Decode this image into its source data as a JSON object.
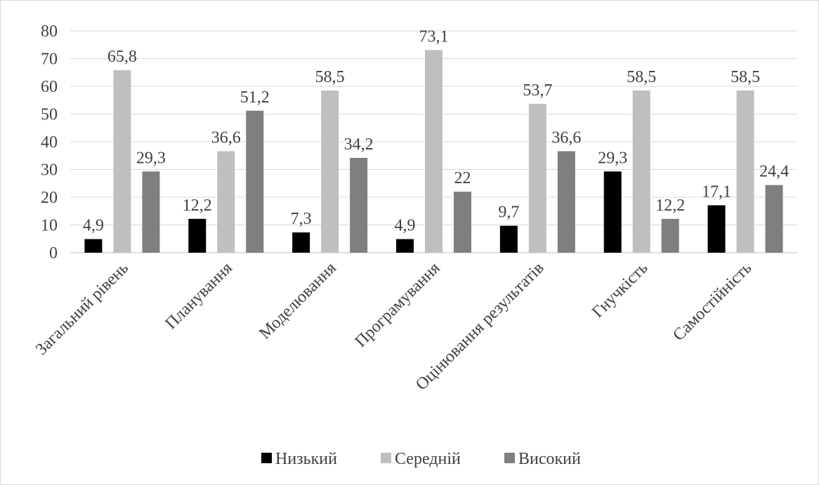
{
  "chart_data": {
    "type": "bar",
    "title": "",
    "xlabel": "",
    "ylabel": "",
    "ylim": [
      0,
      80
    ],
    "yticks": [
      0,
      10,
      20,
      30,
      40,
      50,
      60,
      70,
      80
    ],
    "grid": true,
    "legend_position": "bottom",
    "categories": [
      "Загальний рівень",
      "Планування",
      "Моделювання",
      "Програмування",
      "Оцінювання результатів",
      "Гнучкість",
      "Самостійність"
    ],
    "series": [
      {
        "name": "Низький",
        "color": "#000000",
        "values": [
          4.9,
          12.2,
          7.3,
          4.9,
          9.7,
          29.3,
          17.1
        ],
        "labels": [
          "4,9",
          "12,2",
          "7,3",
          "4,9",
          "9,7",
          "29,3",
          "17,1"
        ]
      },
      {
        "name": "Середній",
        "color": "#bfbfbf",
        "values": [
          65.8,
          36.6,
          58.5,
          73.1,
          53.7,
          58.5,
          58.5
        ],
        "labels": [
          "65,8",
          "36,6",
          "58,5",
          "73,1",
          "53,7",
          "58,5",
          "58,5"
        ]
      },
      {
        "name": "Високий",
        "color": "#7f7f7f",
        "values": [
          29.3,
          51.2,
          34.2,
          22,
          36.6,
          12.2,
          24.4
        ],
        "labels": [
          "29,3",
          "51,2",
          "34,2",
          "22",
          "36,6",
          "12,2",
          "24,4"
        ]
      }
    ]
  }
}
